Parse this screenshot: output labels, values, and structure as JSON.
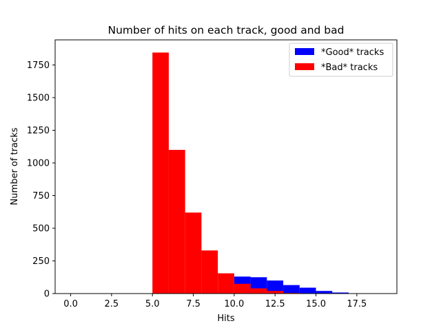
{
  "chart_data": {
    "type": "bar",
    "title": "Number of hits on each track, good and bad",
    "xlabel": "Hits",
    "ylabel": "Number of tracks",
    "xlim": [
      -0.95,
      19.95
    ],
    "ylim": [
      0,
      1942
    ],
    "xticks": [
      0.0,
      2.5,
      5.0,
      7.5,
      10.0,
      12.5,
      15.0,
      17.5
    ],
    "xtick_labels": [
      "0.0",
      "2.5",
      "5.0",
      "7.5",
      "10.0",
      "12.5",
      "15.0",
      "17.5"
    ],
    "yticks": [
      0,
      250,
      500,
      750,
      1000,
      1250,
      1500,
      1750
    ],
    "ytick_labels": [
      "0",
      "250",
      "500",
      "750",
      "1000",
      "1250",
      "1500",
      "1750"
    ],
    "bin_width": 1,
    "grid": false,
    "legend_position": "top-right",
    "series": [
      {
        "name": "*Good* tracks",
        "color": "#0000ff",
        "bins": [
          10,
          11,
          12,
          13,
          14,
          15,
          16
        ],
        "values": [
          130,
          125,
          100,
          65,
          45,
          20,
          8
        ]
      },
      {
        "name": "*Bad* tracks",
        "color": "#ff0000",
        "bins": [
          5,
          6,
          7,
          8,
          9,
          10,
          11,
          12,
          13
        ],
        "values": [
          1845,
          1100,
          620,
          330,
          155,
          75,
          40,
          20,
          5
        ]
      }
    ]
  }
}
